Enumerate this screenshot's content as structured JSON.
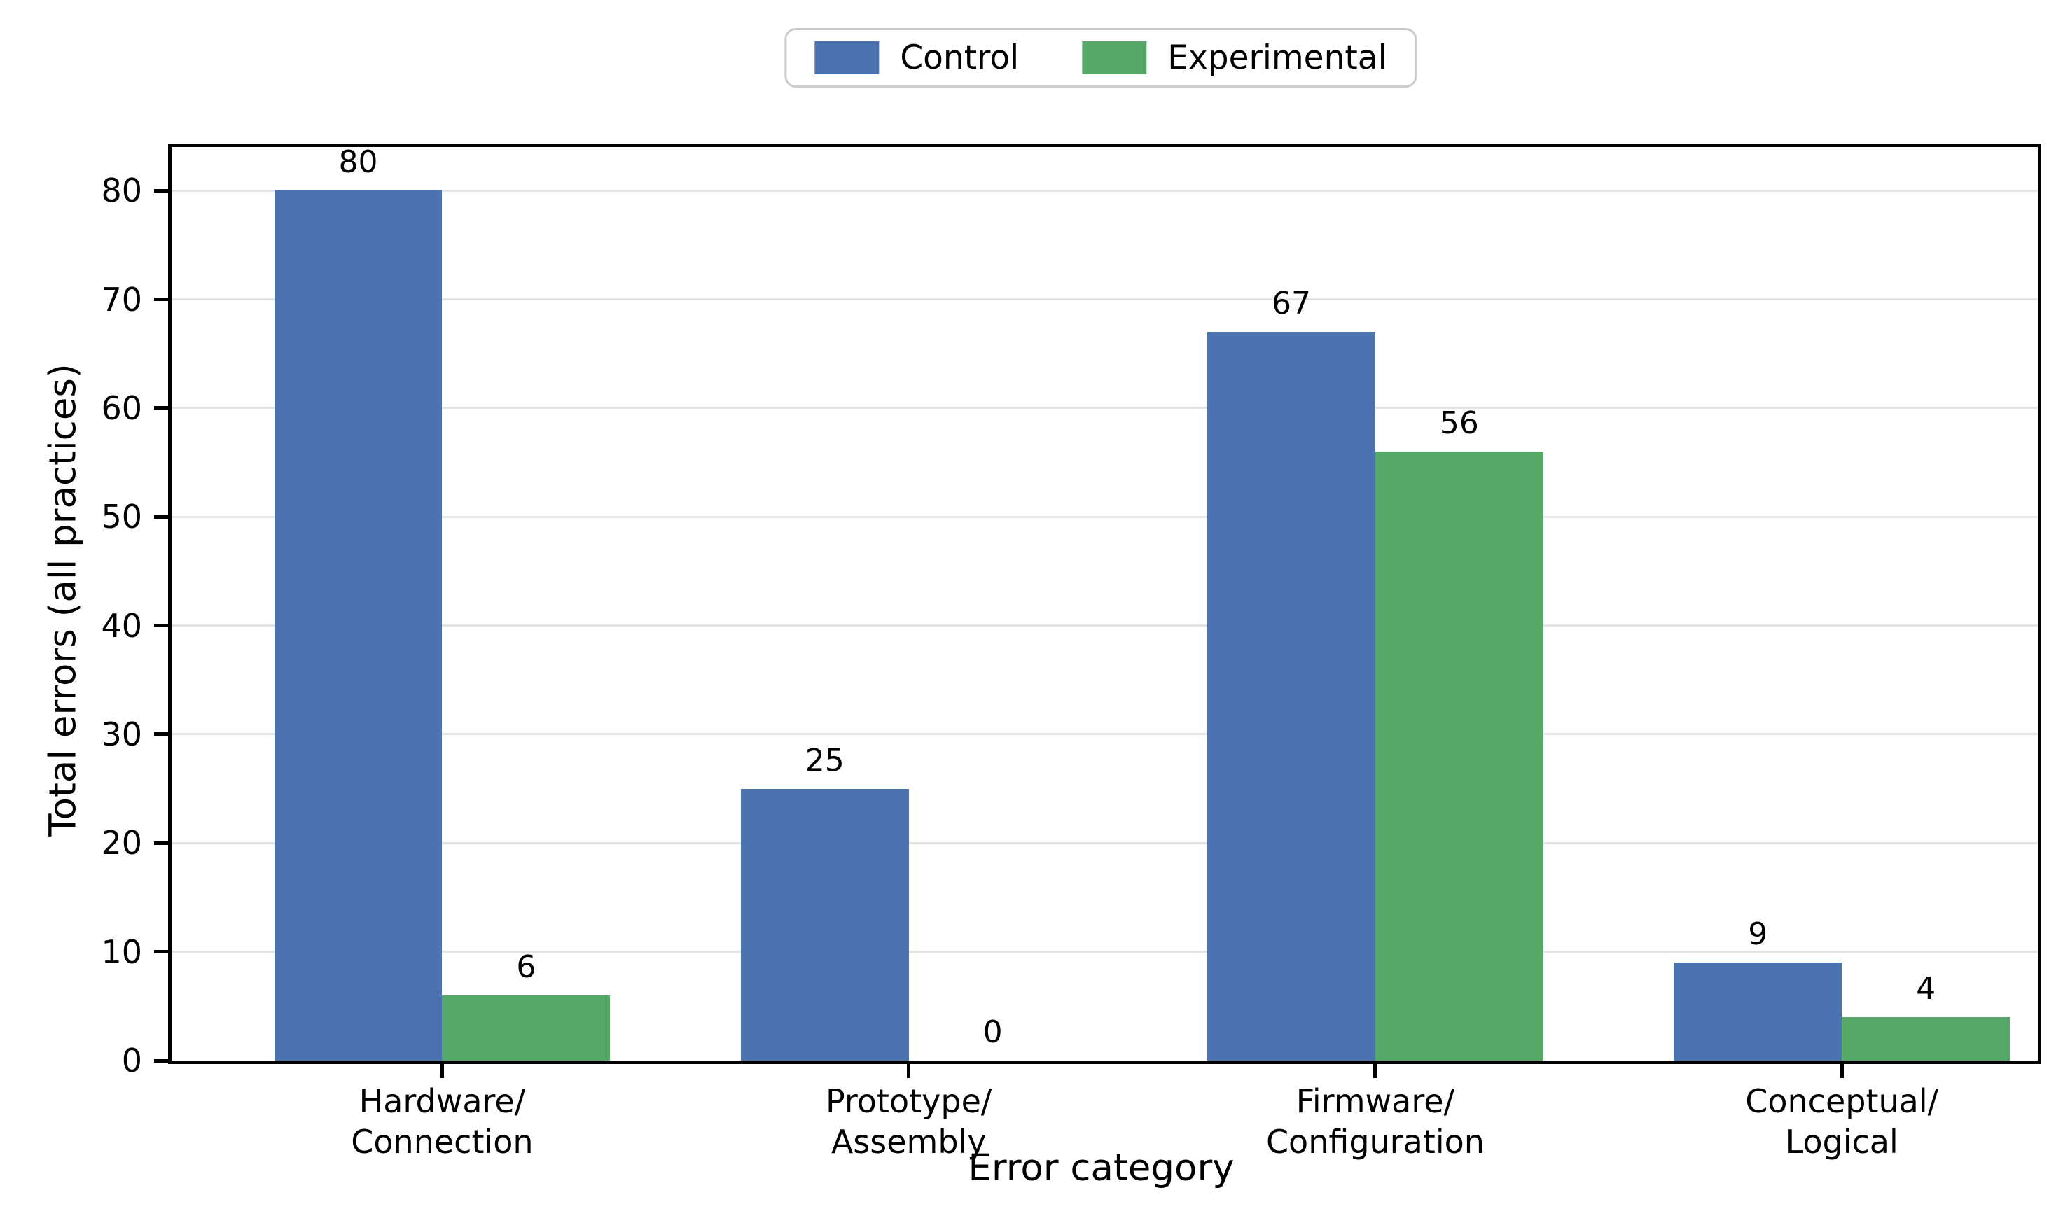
{
  "chart_data": {
    "type": "bar",
    "categories": [
      "Hardware/\nConnection",
      "Prototype/\nAssembly",
      "Firmware/\nConfiguration",
      "Conceptual/\nLogical"
    ],
    "series": [
      {
        "name": "Control",
        "color": "#4C72B0",
        "values": [
          80,
          25,
          67,
          9
        ]
      },
      {
        "name": "Experimental",
        "color": "#55A868",
        "values": [
          6,
          0,
          56,
          4
        ]
      }
    ],
    "title": "",
    "xlabel": "Error category",
    "ylabel": "Total errors (all practices)",
    "ylim": [
      0,
      84
    ],
    "yticks": [
      0,
      10,
      20,
      30,
      40,
      50,
      60,
      70,
      80
    ],
    "grid": "horizontal-major",
    "legend_position": "top-center",
    "bar_value_labels": true,
    "frame": "full-box"
  }
}
